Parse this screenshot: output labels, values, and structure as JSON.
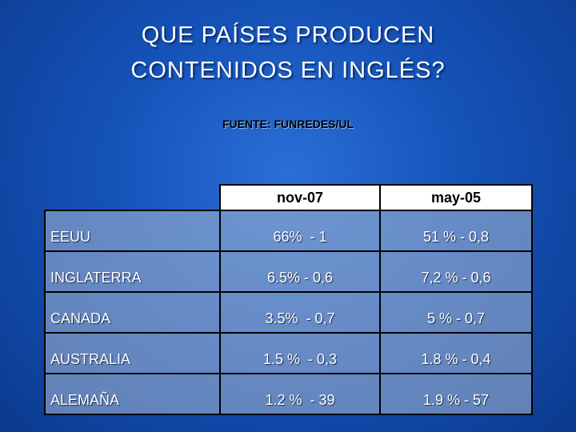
{
  "header": {
    "title": [
      "QUE PAÍSES PRODUCEN",
      "CONTENIDOS EN INGLÉS?"
    ],
    "source": "FUENTE: FUNREDES/UL"
  },
  "table": {
    "columns": [
      "nov-07",
      "may-05"
    ],
    "rows": [
      [
        "EEUU",
        "66%  - 1",
        "51 % - 0,8"
      ],
      [
        "INGLATERRA",
        "6.5% - 0,6",
        "7,2 % - 0,6"
      ],
      [
        "CANADA",
        "3.5%  - 0,7",
        "5 % - 0,7"
      ],
      [
        "AUSTRALIA",
        "1.5 %  - 0,3",
        "1.8 % - 0,4"
      ],
      [
        "ALEMAÑA",
        "1.2 %  - 39",
        "1.9 % - 57"
      ]
    ]
  }
}
